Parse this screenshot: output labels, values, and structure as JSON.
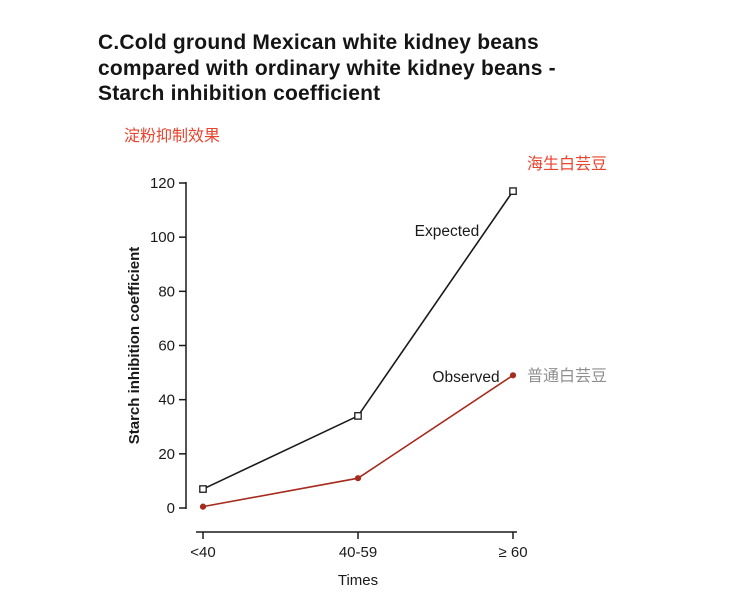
{
  "header": {
    "title_lines": [
      "C.Cold ground Mexican white kidney beans",
      "compared with ordinary white kidney beans -",
      "Starch inhibition coefficient"
    ]
  },
  "annotations": {
    "plot_title_cn": {
      "text": "淀粉抑制效果",
      "color": "#e8442e"
    },
    "expected_series_cn": {
      "text": "海生白芸豆",
      "color": "#e8442e"
    },
    "observed_series_cn": {
      "text": "普通白芸豆",
      "color": "#8f8f8f"
    }
  },
  "chart_data": {
    "type": "line",
    "title": "C.Cold ground Mexican white kidney beans compared with ordinary white kidney beans - Starch inhibition coefficient",
    "categories": [
      "<40",
      "40-59",
      "≥ 60"
    ],
    "series": [
      {
        "name": "Expected",
        "values": [
          7,
          34,
          117
        ],
        "color": "#1a1a1a",
        "marker": "open-square"
      },
      {
        "name": "Observed",
        "values": [
          0.5,
          11,
          49
        ],
        "color": "#a62b1d",
        "marker": "filled-circle"
      }
    ],
    "xlabel": "Times",
    "ylabel": "Starch inhibition coefficient",
    "ylim": [
      0,
      120
    ],
    "yticks": [
      0,
      20,
      40,
      60,
      80,
      100,
      120
    ],
    "grid": false,
    "legend": "inline-labels",
    "axis_color": "#1a1a1a",
    "background": "#ffffff"
  }
}
